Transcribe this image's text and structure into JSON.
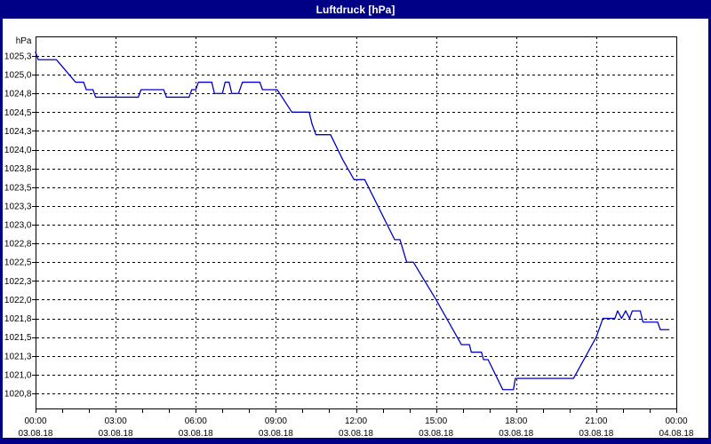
{
  "window": {
    "title": "Luftdruck [hPa]"
  },
  "colors": {
    "titlebar_bg": "#000087",
    "window_border": "#000087",
    "plot_bg": "#ffffff",
    "grid": "#000000",
    "axis": "#000000",
    "text": "#000000",
    "title_text": "#ffffff",
    "line": "#0000c8"
  },
  "chart_data": {
    "type": "line",
    "title": "Luftdruck [hPa]",
    "ylabel": "hPa",
    "xlabel": "",
    "grid": true,
    "legend": "none",
    "ylim": [
      1020.75,
      1025.25
    ],
    "xlim_hours": [
      0,
      24
    ],
    "minor_x_tick_hours": 1,
    "y_ticks": [
      {
        "label": "1025,3",
        "value": 1025.25
      },
      {
        "label": "1025,0",
        "value": 1025.0
      },
      {
        "label": "1024,8",
        "value": 1024.75
      },
      {
        "label": "1024,5",
        "value": 1024.5
      },
      {
        "label": "1024,3",
        "value": 1024.25
      },
      {
        "label": "1024,0",
        "value": 1024.0
      },
      {
        "label": "1023,8",
        "value": 1023.75
      },
      {
        "label": "1023,5",
        "value": 1023.5
      },
      {
        "label": "1023,3",
        "value": 1023.25
      },
      {
        "label": "1023,0",
        "value": 1023.0
      },
      {
        "label": "1022,8",
        "value": 1022.75
      },
      {
        "label": "1022,5",
        "value": 1022.5
      },
      {
        "label": "1022,3",
        "value": 1022.25
      },
      {
        "label": "1022,0",
        "value": 1022.0
      },
      {
        "label": "1021,8",
        "value": 1021.75
      },
      {
        "label": "1021,5",
        "value": 1021.5
      },
      {
        "label": "1021,3",
        "value": 1021.25
      },
      {
        "label": "1021,0",
        "value": 1021.0
      },
      {
        "label": "1020,8",
        "value": 1020.75
      }
    ],
    "x_ticks": [
      {
        "hour": 0,
        "time": "00:00",
        "date": "03.08.18"
      },
      {
        "hour": 3,
        "time": "03:00",
        "date": "03.08.18"
      },
      {
        "hour": 6,
        "time": "06:00",
        "date": "03.08.18"
      },
      {
        "hour": 9,
        "time": "09:00",
        "date": "03.08.18"
      },
      {
        "hour": 12,
        "time": "12:00",
        "date": "03.08.18"
      },
      {
        "hour": 15,
        "time": "15:00",
        "date": "03.08.18"
      },
      {
        "hour": 18,
        "time": "18:00",
        "date": "03.08.18"
      },
      {
        "hour": 21,
        "time": "21:00",
        "date": "03.08.18"
      },
      {
        "hour": 24,
        "time": "00:00",
        "date": "04.08.18"
      }
    ],
    "series": [
      {
        "name": "Luftdruck",
        "color": "#0000c8",
        "points": [
          [
            0.0,
            1025.3
          ],
          [
            0.1,
            1025.2
          ],
          [
            0.78,
            1025.2
          ],
          [
            1.5,
            1024.9
          ],
          [
            1.8,
            1024.9
          ],
          [
            1.9,
            1024.8
          ],
          [
            2.15,
            1024.8
          ],
          [
            2.25,
            1024.7
          ],
          [
            3.85,
            1024.7
          ],
          [
            3.95,
            1024.8
          ],
          [
            4.8,
            1024.8
          ],
          [
            4.9,
            1024.7
          ],
          [
            5.75,
            1024.7
          ],
          [
            5.85,
            1024.8
          ],
          [
            6.0,
            1024.8
          ],
          [
            6.1,
            1024.9
          ],
          [
            6.6,
            1024.9
          ],
          [
            6.7,
            1024.75
          ],
          [
            7.0,
            1024.75
          ],
          [
            7.1,
            1024.9
          ],
          [
            7.25,
            1024.9
          ],
          [
            7.35,
            1024.75
          ],
          [
            7.6,
            1024.75
          ],
          [
            7.75,
            1024.9
          ],
          [
            8.4,
            1024.9
          ],
          [
            8.5,
            1024.8
          ],
          [
            9.05,
            1024.8
          ],
          [
            9.6,
            1024.5
          ],
          [
            10.25,
            1024.5
          ],
          [
            10.35,
            1024.35
          ],
          [
            10.5,
            1024.2
          ],
          [
            11.05,
            1024.2
          ],
          [
            11.5,
            1023.87
          ],
          [
            11.93,
            1023.6
          ],
          [
            12.33,
            1023.6
          ],
          [
            13.45,
            1022.8
          ],
          [
            13.65,
            1022.8
          ],
          [
            13.9,
            1022.5
          ],
          [
            14.15,
            1022.5
          ],
          [
            15.0,
            1022.0
          ],
          [
            15.95,
            1021.4
          ],
          [
            16.25,
            1021.4
          ],
          [
            16.32,
            1021.3
          ],
          [
            16.7,
            1021.3
          ],
          [
            16.78,
            1021.2
          ],
          [
            16.95,
            1021.2
          ],
          [
            17.5,
            1020.8
          ],
          [
            17.9,
            1020.8
          ],
          [
            17.97,
            1020.95
          ],
          [
            20.15,
            1020.95
          ],
          [
            21.0,
            1021.5
          ],
          [
            21.25,
            1021.75
          ],
          [
            21.7,
            1021.75
          ],
          [
            21.8,
            1021.85
          ],
          [
            21.95,
            1021.75
          ],
          [
            22.1,
            1021.85
          ],
          [
            22.25,
            1021.75
          ],
          [
            22.35,
            1021.85
          ],
          [
            22.65,
            1021.85
          ],
          [
            22.75,
            1021.7
          ],
          [
            23.3,
            1021.7
          ],
          [
            23.4,
            1021.6
          ],
          [
            23.72,
            1021.6
          ]
        ]
      }
    ]
  }
}
